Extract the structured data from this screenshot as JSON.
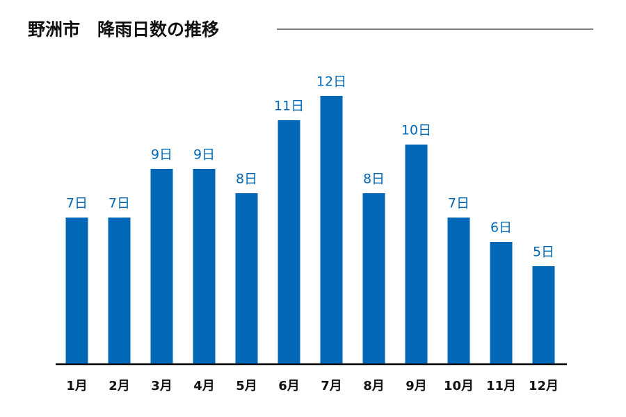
{
  "chart_data": {
    "type": "bar",
    "title": "野洲市　降雨日数の推移",
    "categories": [
      "1月",
      "2月",
      "3月",
      "4月",
      "5月",
      "6月",
      "7月",
      "8月",
      "9月",
      "10月",
      "11月",
      "12月"
    ],
    "values": [
      7,
      7,
      9,
      9,
      8,
      11,
      12,
      8,
      10,
      7,
      6,
      5
    ],
    "value_labels": [
      "7日",
      "7日",
      "9日",
      "9日",
      "8日",
      "11日",
      "12日",
      "8日",
      "10日",
      "7日",
      "6日",
      "5日"
    ],
    "color": "#0068b7",
    "ylim": [
      1,
      13
    ]
  }
}
